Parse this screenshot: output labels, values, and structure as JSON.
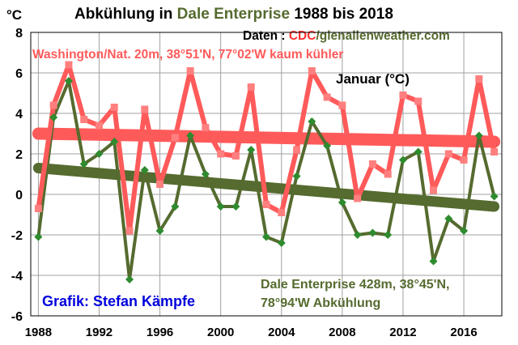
{
  "chart_data": {
    "type": "line",
    "title_parts": [
      {
        "text": "Abkühlung in ",
        "color": "#000000"
      },
      {
        "text": "Dale Enterprise",
        "color": "#556b2f"
      },
      {
        "text": " 1988 bis 2018",
        "color": "#000000"
      }
    ],
    "unit_label": "°C",
    "source_parts": [
      {
        "text": "Daten : ",
        "color": "#000000"
      },
      {
        "text": "CDC",
        "color": "#ff3333"
      },
      {
        "text": "/glenallenweather.com",
        "color": "#556b2f"
      }
    ],
    "subtitle": "Januar (°C)",
    "credit": "Grafik: Stefan Kämpfe",
    "ylim": [
      -6,
      8
    ],
    "yticks": [
      -6,
      -4,
      -2,
      0,
      2,
      4,
      6,
      8
    ],
    "xlim": [
      1987.5,
      2018.5
    ],
    "xticks": [
      1988,
      1992,
      1996,
      2000,
      2004,
      2008,
      2012,
      2016
    ],
    "grid": true,
    "x": [
      1988,
      1989,
      1990,
      1991,
      1992,
      1993,
      1994,
      1995,
      1996,
      1997,
      1998,
      1999,
      2000,
      2001,
      2002,
      2003,
      2004,
      2005,
      2006,
      2007,
      2008,
      2009,
      2010,
      2011,
      2012,
      2013,
      2014,
      2015,
      2016,
      2017,
      2018
    ],
    "series": [
      {
        "name": "Washington/Nat. 20m, 38°51'N, 77°02'W kaum kühler",
        "color": "#ff5a5a",
        "marker_color": "#ff7f7f",
        "values": [
          -0.7,
          4.4,
          6.4,
          3.7,
          3.4,
          4.3,
          -1.8,
          4.2,
          0.5,
          2.8,
          6.1,
          3.3,
          2.0,
          1.9,
          5.3,
          -0.5,
          -0.9,
          2.2,
          6.1,
          4.8,
          4.4,
          -0.2,
          1.5,
          1.0,
          4.9,
          4.6,
          0.2,
          2.0,
          1.7,
          5.7,
          2.1
        ],
        "trend": [
          3.0,
          2.6
        ]
      },
      {
        "name_lines": [
          "Dale Enterprise 428m, 38°45'N,",
          "78°94'W  Abkühlung"
        ],
        "color": "#556b2f",
        "marker_color": "#2e8b2e",
        "values": [
          -2.1,
          3.8,
          5.6,
          1.5,
          2.0,
          2.6,
          -4.2,
          1.2,
          -1.8,
          -0.6,
          2.9,
          1.0,
          -0.6,
          -0.6,
          2.2,
          -2.1,
          -2.4,
          0.9,
          3.6,
          2.4,
          -0.4,
          -2.0,
          -1.9,
          -2.0,
          1.7,
          2.1,
          -3.3,
          -1.2,
          -1.8,
          2.9,
          -0.1
        ],
        "trend": [
          1.3,
          -0.6
        ]
      }
    ]
  }
}
